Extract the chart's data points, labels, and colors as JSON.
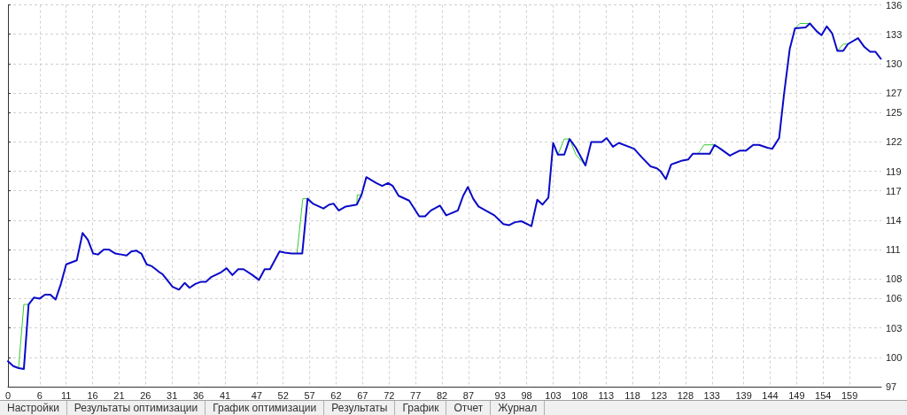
{
  "chart_data": {
    "type": "line",
    "xlim": [
      0,
      165
    ],
    "ylim": [
      97,
      136
    ],
    "xticks": [
      0,
      6,
      11,
      16,
      21,
      26,
      31,
      36,
      41,
      47,
      52,
      57,
      62,
      67,
      72,
      77,
      82,
      87,
      93,
      98,
      103,
      108,
      113,
      118,
      123,
      128,
      133,
      139,
      144,
      149,
      154,
      159
    ],
    "yticks": [
      97,
      100,
      103,
      106,
      108,
      111,
      114,
      117,
      119,
      122,
      125,
      127,
      130,
      133,
      136
    ],
    "grid": true,
    "marker": "none",
    "line_style": "solid",
    "annotations": [
      "Настройки",
      "Результаты оптимизации",
      "График оптимизации",
      "Результаты",
      "График",
      "Отчет",
      "Журнал"
    ],
    "series": [
      {
        "color": "#33cc33",
        "x": [
          2.0,
          3.0,
          3.9,
          30,
          54.6,
          55.7,
          56.6,
          60,
          65.9,
          66.0,
          66.8,
          90,
          103.9,
          105.1,
          106.1,
          107.3,
          109.1,
          120,
          130.4,
          131.5,
          133.5,
          140,
          148.7,
          149.6,
          150.7,
          151.5,
          155,
          156.7,
          157.8,
          158.7
        ],
        "values": [
          98.9,
          105.4,
          105.4,
          null,
          110.6,
          116.2,
          116.2,
          null,
          115.6,
          116.6,
          116.6,
          null,
          120.7,
          122.3,
          122.3,
          120.7,
          119.6,
          null,
          120.8,
          121.7,
          121.7,
          null,
          133.6,
          134.1,
          134.1,
          134.1,
          null,
          131.3,
          132.0,
          132.0
        ]
      },
      {
        "color": "#0a0ac8",
        "x": [
          0,
          1.0,
          2.0,
          3.0,
          3.9,
          4.9,
          6.0,
          7.0,
          8.0,
          9.0,
          10.0,
          11.0,
          13.0,
          14.1,
          15.1,
          16.1,
          17.0,
          18.1,
          19.1,
          20.3,
          21.4,
          22.4,
          23.3,
          24.2,
          25.2,
          26.2,
          27.2,
          28.6,
          29.2,
          31.1,
          32.3,
          33.4,
          34.3,
          35.4,
          36.4,
          37.4,
          38.4,
          40.3,
          41.3,
          42.4,
          43.5,
          44.5,
          46.2,
          47.4,
          48.5,
          49.5,
          51.3,
          52.3,
          53.6,
          55.6,
          56.6,
          57.6,
          59.6,
          60.7,
          61.5,
          62.5,
          63.8,
          65.9,
          66.8,
          67.7,
          69.6,
          70.7,
          71.8,
          72.7,
          73.8,
          75.8,
          77.7,
          78.8,
          79.9,
          81.6,
          82.8,
          85.0,
          86.0,
          86.9,
          87.9,
          88.9,
          91.9,
          93.6,
          94.7,
          95.8,
          97.0,
          98.9,
          100.0,
          101.0,
          102.1,
          103.0,
          103.9,
          105.1,
          106.1,
          107.3,
          109.1,
          110.2,
          111.2,
          112.2,
          113.1,
          114.3,
          115.4,
          118.3,
          119.8,
          121.4,
          122.6,
          123.3,
          124.3,
          125.3,
          127.4,
          128.5,
          129.4,
          130.4,
          132.6,
          133.5,
          134.6,
          136.4,
          137.1,
          138.2,
          139.4,
          140.8,
          141.9,
          143.5,
          144.4,
          145.7,
          146.6,
          147.7,
          148.7,
          150.7,
          151.5,
          152.8,
          153.7,
          154.7,
          155.7,
          156.7,
          157.8,
          158.7,
          160.6,
          161.8,
          162.9,
          163.9,
          164.9
        ],
        "values": [
          99.6,
          99.1,
          98.9,
          98.8,
          105.4,
          106.1,
          106.0,
          106.4,
          106.4,
          105.9,
          107.5,
          109.5,
          109.9,
          112.7,
          112.0,
          110.6,
          110.5,
          111.0,
          111.0,
          110.6,
          110.5,
          110.4,
          110.8,
          110.9,
          110.6,
          109.5,
          109.3,
          108.7,
          108.5,
          107.2,
          106.9,
          107.6,
          107.1,
          107.5,
          107.7,
          107.7,
          108.2,
          108.7,
          109.1,
          108.4,
          109.0,
          109.0,
          108.4,
          107.9,
          109.0,
          109.0,
          110.8,
          110.7,
          110.6,
          110.6,
          116.2,
          115.7,
          115.2,
          115.6,
          115.7,
          115.0,
          115.4,
          115.6,
          116.6,
          118.4,
          117.8,
          117.5,
          117.8,
          117.5,
          116.5,
          116.0,
          114.4,
          114.4,
          115.0,
          115.5,
          114.5,
          115.0,
          116.5,
          117.4,
          116.2,
          115.4,
          114.5,
          113.6,
          113.5,
          113.8,
          113.9,
          113.4,
          116.1,
          115.6,
          116.3,
          121.9,
          120.7,
          120.7,
          122.3,
          121.4,
          119.6,
          122.0,
          122.0,
          122.0,
          122.4,
          121.5,
          121.9,
          121.3,
          120.4,
          119.5,
          119.3,
          119.0,
          118.2,
          119.7,
          120.1,
          120.2,
          120.8,
          120.8,
          120.8,
          121.7,
          121.3,
          120.6,
          120.8,
          121.1,
          121.1,
          121.7,
          121.7,
          121.4,
          121.3,
          122.4,
          126.8,
          131.5,
          133.6,
          133.7,
          134.1,
          133.3,
          132.9,
          133.8,
          133.1,
          131.3,
          131.3,
          132.0,
          132.6,
          131.7,
          131.2,
          131.2,
          130.5
        ]
      }
    ]
  }
}
